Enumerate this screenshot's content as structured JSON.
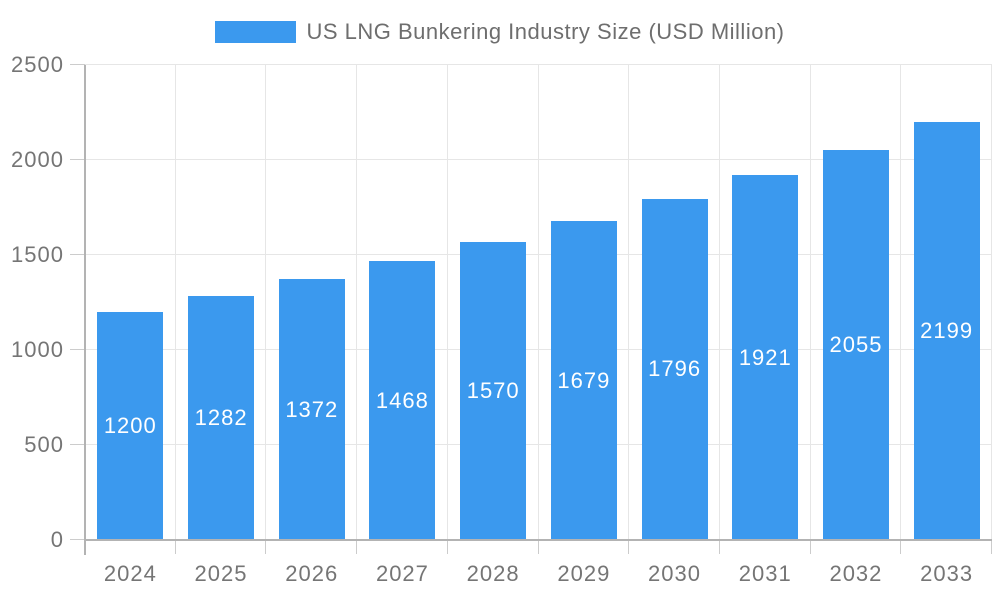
{
  "chart_data": {
    "type": "bar",
    "title": "US LNG Bunkering Industry Size (USD Million)",
    "legend": [
      {
        "label": "US LNG Bunkering Industry Size (USD Million)",
        "color": "#3B99EE"
      }
    ],
    "legend_position": "top-center",
    "categories": [
      "2024",
      "2025",
      "2026",
      "2027",
      "2028",
      "2029",
      "2030",
      "2031",
      "2032",
      "2033"
    ],
    "values": [
      1200,
      1282,
      1372,
      1468,
      1570,
      1679,
      1796,
      1921,
      2055,
      2199
    ],
    "value_labels_shown": true,
    "xlabel": "",
    "ylabel": "",
    "ylim": [
      0,
      2500
    ],
    "y_ticks": [
      0,
      500,
      1000,
      1500,
      2000,
      2500
    ],
    "grid": true
  },
  "colors": {
    "bar": "#3B99EE",
    "bar_value_label": "#FFFFFF",
    "axis_line": "#B3B3B3",
    "gridline": "#E6E6E6",
    "tick": "#CCCCCC",
    "axis_label": "#757575",
    "legend_text": "#6E6E6E",
    "background": "#FFFFFF"
  }
}
